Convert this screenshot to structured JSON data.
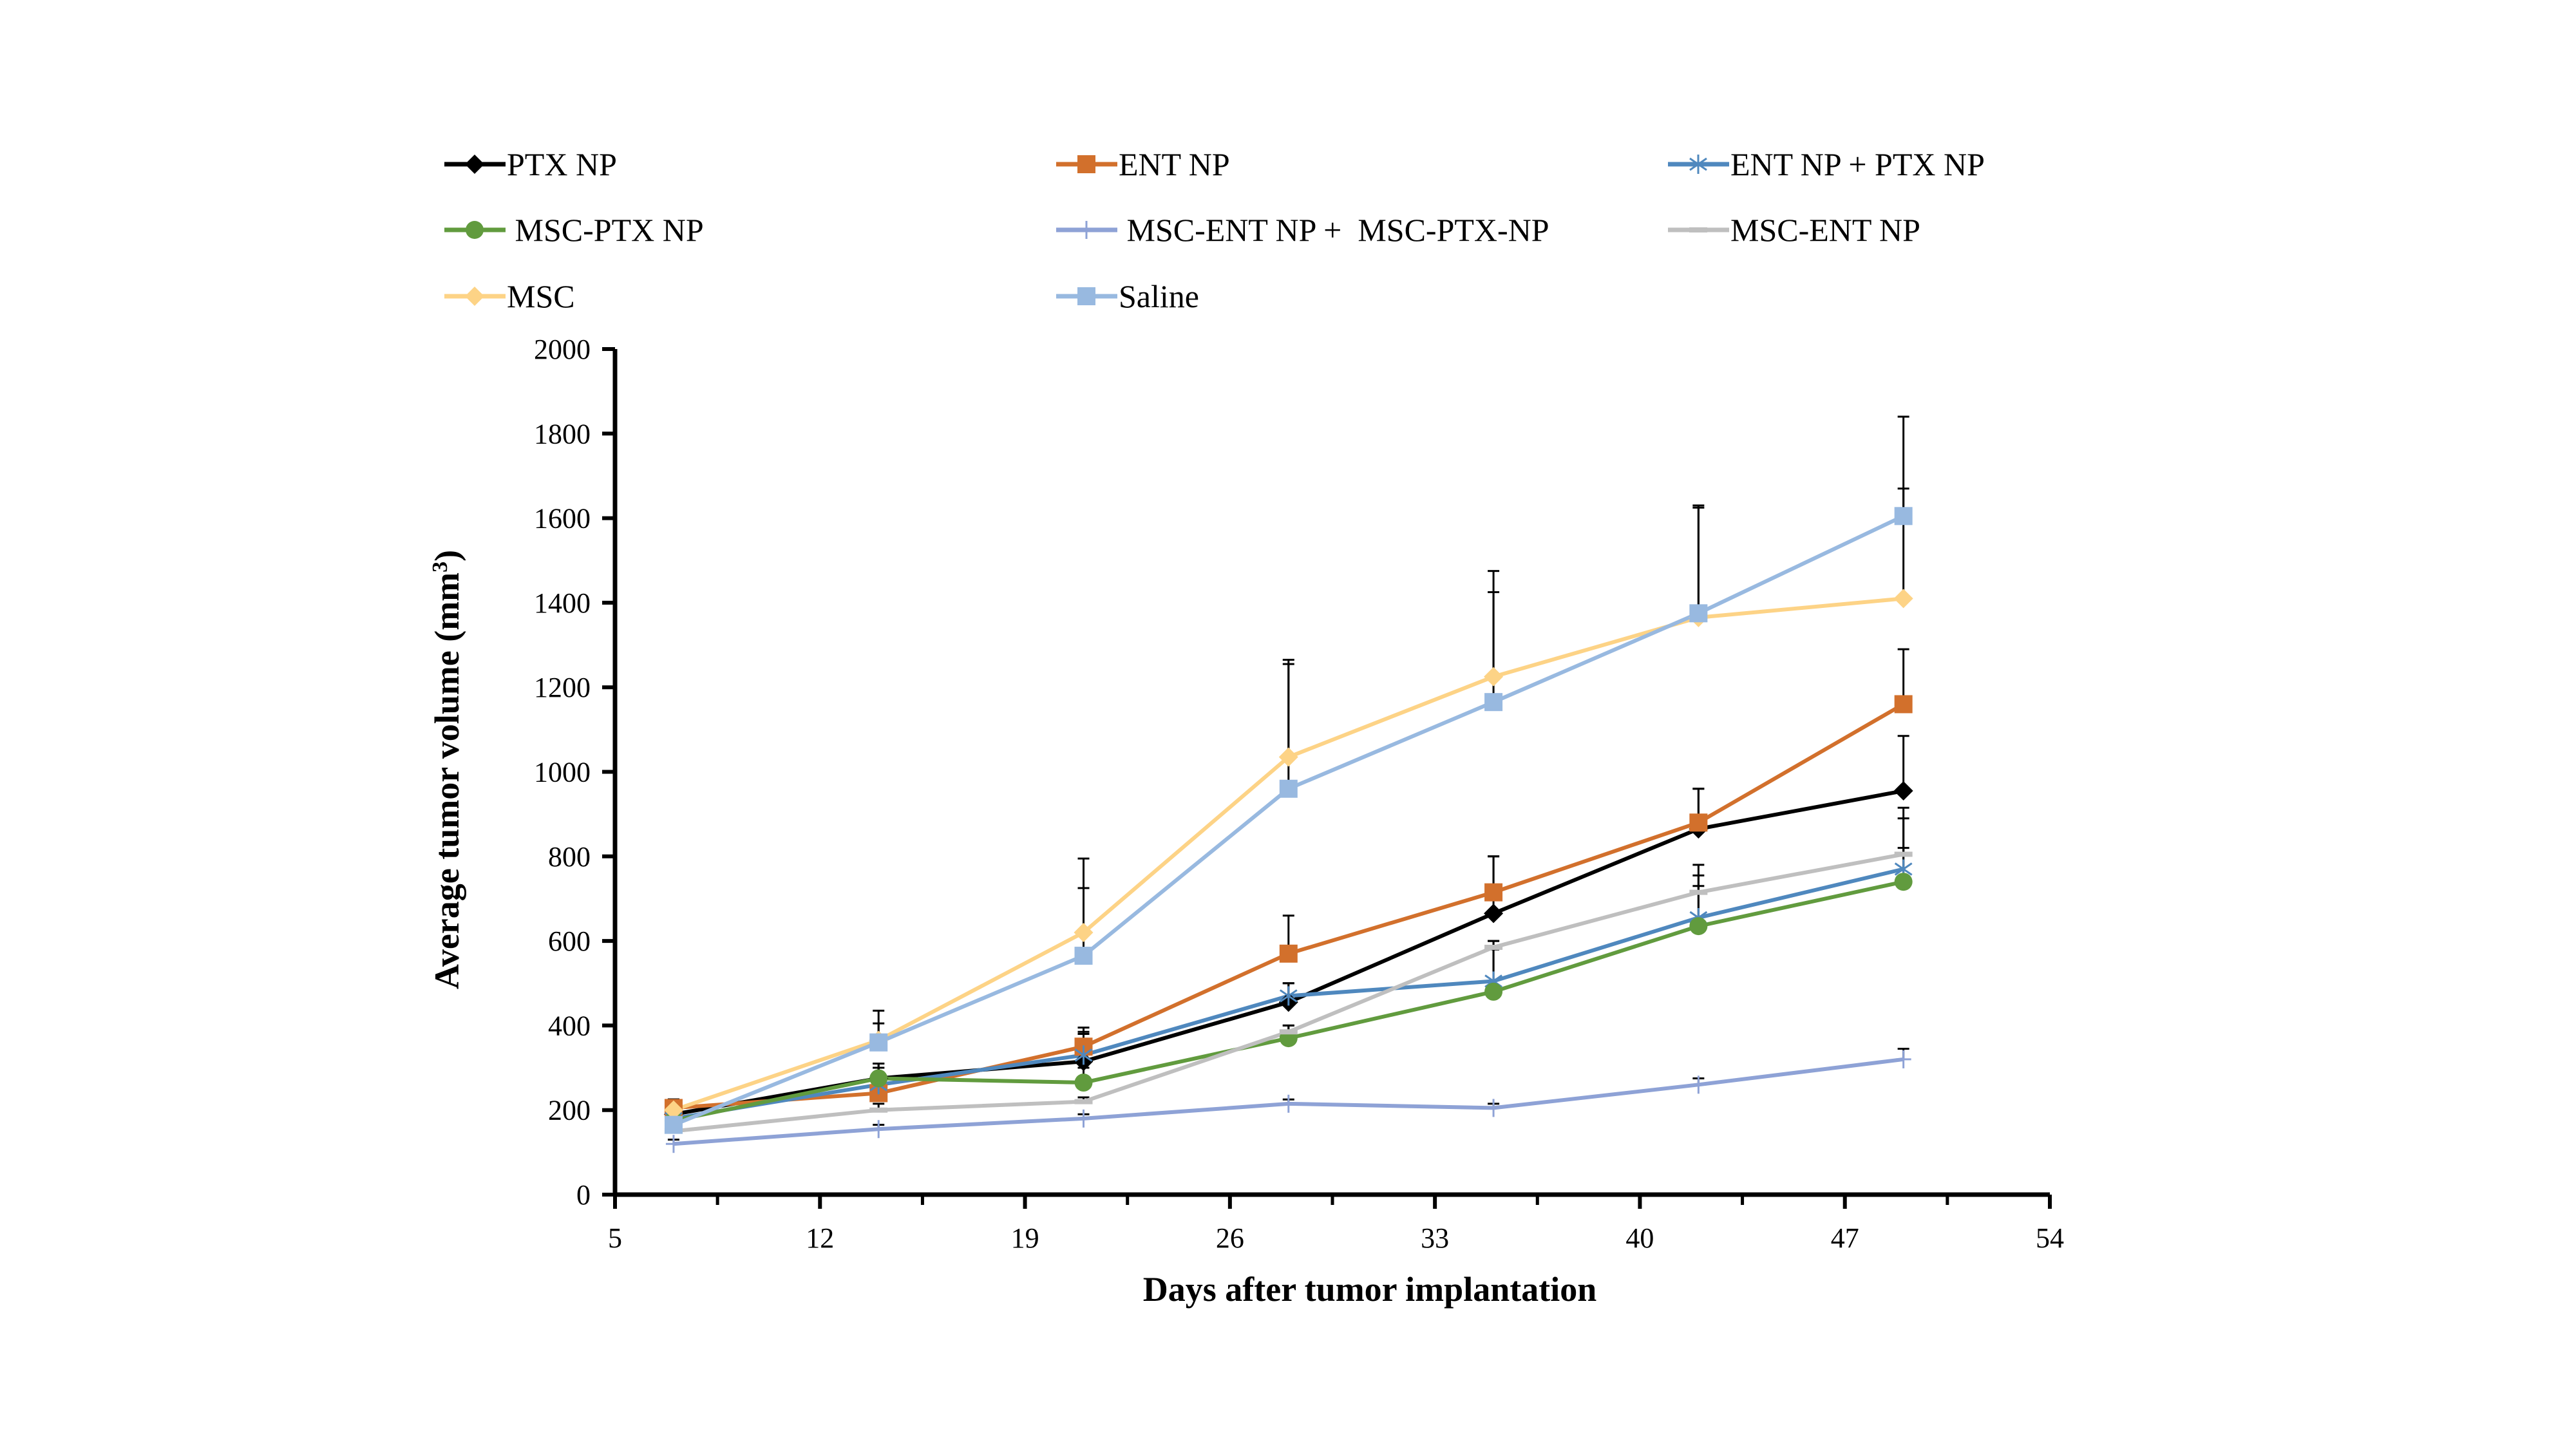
{
  "chart_data": {
    "type": "line",
    "title": "",
    "xlabel": "Days after tumor implantation",
    "ylabel": "Average tumor volume (mm3)",
    "ylabel_main": "Average tumor volume (mm",
    "ylabel_sup": "3",
    "ylabel_end": ")",
    "xlim": [
      5,
      54
    ],
    "ylim": [
      0,
      2000
    ],
    "x_ticks": [
      5,
      12,
      19,
      26,
      33,
      40,
      47,
      54
    ],
    "y_ticks": [
      0,
      200,
      400,
      600,
      800,
      1000,
      1200,
      1400,
      1600,
      1800,
      2000
    ],
    "grid": false,
    "legend_position": "top",
    "x": [
      7,
      14,
      21,
      28,
      35,
      42,
      49
    ],
    "series": [
      {
        "name": "PTX NP",
        "color": "#000000",
        "marker": "diamond",
        "values": [
          190,
          275,
          315,
          455,
          665,
          865,
          955
        ],
        "error_upper": [
          225,
          310,
          385,
          500,
          800,
          960,
          1085
        ]
      },
      {
        "name": "ENT NP",
        "color": "#D2702C",
        "marker": "square",
        "values": [
          205,
          240,
          350,
          570,
          715,
          880,
          1160
        ],
        "error_upper": [
          225,
          300,
          395,
          660,
          800,
          960,
          1290
        ]
      },
      {
        "name": "ENT NP + PTX NP",
        "color": "#4F88BE",
        "marker": "asterisk",
        "values": [
          180,
          260,
          330,
          470,
          505,
          655,
          770
        ],
        "error_upper": [
          210,
          300,
          380,
          500,
          600,
          780,
          915
        ]
      },
      {
        "name": "MSC-PTX NP",
        "color": "#619B3E",
        "marker": "circle",
        "values": [
          175,
          275,
          265,
          370,
          480,
          635,
          740
        ],
        "error_upper": [
          205,
          310,
          300,
          400,
          580,
          755,
          890
        ]
      },
      {
        "name": "MSC-ENT NP +  MSC-PTX-NP",
        "color": "#8EA2D6",
        "marker": "plus",
        "values": [
          120,
          155,
          180,
          215,
          205,
          260,
          320
        ],
        "error_upper": [
          130,
          165,
          190,
          225,
          215,
          275,
          345
        ]
      },
      {
        "name": "MSC-ENT NP",
        "color": "#BFBFBF",
        "marker": "dash",
        "values": [
          150,
          200,
          220,
          385,
          585,
          715,
          805
        ],
        "error_upper": [
          160,
          215,
          230,
          400,
          600,
          730,
          820
        ]
      },
      {
        "name": "MSC",
        "color": "#FDD386",
        "marker": "diamond",
        "values": [
          200,
          365,
          620,
          1035,
          1225,
          1365,
          1410
        ],
        "error_upper": [
          225,
          435,
          795,
          1265,
          1475,
          1630,
          1840
        ]
      },
      {
        "name": "Saline",
        "color": "#98B9E0",
        "marker": "square",
        "values": [
          165,
          360,
          565,
          960,
          1165,
          1375,
          1605
        ],
        "error_upper": [
          215,
          405,
          725,
          1255,
          1425,
          1625,
          1670
        ]
      }
    ]
  }
}
